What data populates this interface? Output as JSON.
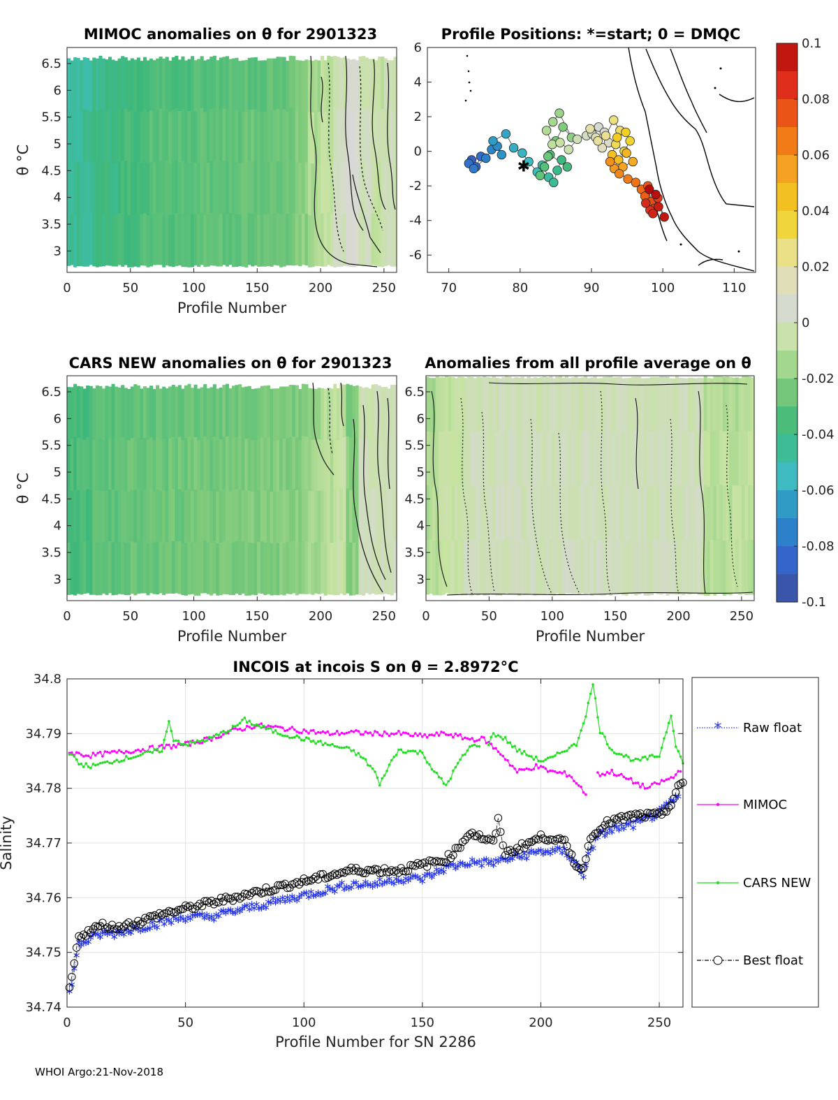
{
  "footer": "WHOI Argo:21-Nov-2018",
  "colors": {
    "raw": "#1f2ff0",
    "mimoc": "#ff00ff",
    "cars": "#22dd22",
    "best": "#000000",
    "cmap": [
      "#3d4f99",
      "#3366cc",
      "#2a8fc8",
      "#3fbfbf",
      "#3db87a",
      "#7cc97a",
      "#c6e3a0",
      "#d8d8d8",
      "#e9e296",
      "#f2d322",
      "#f5a623",
      "#f06a13",
      "#e0301c",
      "#b30b0b"
    ]
  },
  "colorbar": {
    "ticks": [
      0.1,
      0.08,
      0.06,
      0.04,
      0.02,
      0,
      -0.02,
      -0.04,
      -0.06,
      -0.08,
      -0.1
    ],
    "labels": [
      "0.1",
      "0.08",
      "0.06",
      "0.04",
      "0.02",
      "0",
      "-0.02",
      "-0.04",
      "-0.06",
      "-0.08",
      "-0.1"
    ]
  },
  "panels": {
    "mimoc": {
      "title": "MIMOC anomalies on θ  for 2901323",
      "xlabel": "Profile Number",
      "ylabel": "θ °C",
      "xticks": [
        0,
        50,
        100,
        150,
        200,
        250
      ],
      "yticks": [
        "6.5",
        "6",
        "5.5",
        "5",
        "4.5",
        "4",
        "3.5",
        "3"
      ]
    },
    "positions": {
      "title": "Profile Positions: *=start; 0 = DMQC",
      "xticks": [
        70,
        80,
        90,
        100,
        110
      ],
      "yticks": [
        "6",
        "4",
        "2",
        "0",
        "-2",
        "-4",
        "-6"
      ]
    },
    "cars": {
      "title": "CARS NEW anomalies on θ for 2901323",
      "xlabel": "Profile Number",
      "ylabel": "θ °C",
      "xticks": [
        0,
        50,
        100,
        150,
        200,
        250
      ],
      "yticks": [
        "6.5",
        "6",
        "5.5",
        "5",
        "4.5",
        "4",
        "3.5",
        "3"
      ]
    },
    "allavg": {
      "title": "Anomalies from all profile average on θ",
      "xlabel": "Profile Number",
      "xticks": [
        0,
        50,
        100,
        150,
        200,
        250
      ],
      "yticks": [
        "6.5",
        "6",
        "5.5",
        "5",
        "4.5",
        "4",
        "3.5",
        "3"
      ]
    }
  },
  "chart_data": [
    {
      "type": "heatmap",
      "title": "MIMOC anomalies on θ  for 2901323",
      "xlabel": "Profile Number",
      "ylabel": "θ °C",
      "xlim": [
        0,
        260
      ],
      "ylim": [
        2.6,
        6.8
      ],
      "clim": [
        -0.1,
        0.1
      ],
      "x_breaks": [
        0,
        20,
        40,
        60,
        80,
        100,
        120,
        140,
        160,
        180,
        190,
        200,
        210,
        220,
        230,
        240,
        250,
        260
      ],
      "anomaly": [
        -0.045,
        -0.04,
        -0.036,
        -0.033,
        -0.032,
        -0.03,
        -0.029,
        -0.028,
        -0.026,
        -0.02,
        -0.012,
        -0.008,
        0.0,
        0.01,
        0.0,
        -0.006,
        0.0
      ],
      "theta_top_range": [
        6.55,
        6.65
      ],
      "theta_bottom": 2.7
    },
    {
      "type": "scatter",
      "title": "Profile Positions: *=start; 0 = DMQC",
      "xlim": [
        67,
        113
      ],
      "ylim": [
        -7,
        6
      ],
      "start": [
        80.5,
        -0.9
      ],
      "clim": [
        0,
        260
      ],
      "x": [
        73.2,
        73.8,
        74.5,
        72.8,
        73.5,
        75.2,
        76.0,
        76.8,
        77.4,
        76.2,
        78.0,
        79.1,
        80.3,
        81.2,
        82.4,
        83.1,
        84.0,
        84.7,
        85.2,
        85.8,
        86.6,
        84.2,
        83.4,
        82.8,
        83.9,
        85.0,
        86.0,
        87.2,
        85.5,
        84.6,
        83.7,
        84.5,
        85.6,
        86.8,
        88.0,
        89.3,
        90.1,
        91.0,
        91.8,
        92.4,
        91.5,
        90.6,
        89.8,
        90.9,
        92.0,
        93.1,
        94.0,
        93.4,
        94.6,
        95.4,
        94.8,
        93.6,
        92.9,
        93.8,
        94.9,
        95.8,
        94.4,
        93.2,
        92.6,
        93.9,
        95.1,
        96.2,
        97.0,
        97.5,
        97.9,
        98.4,
        98.8,
        99.3,
        98.2,
        97.6,
        98.6,
        99.4,
        100.2,
        99.0,
        98.1
      ],
      "y": [
        -0.5,
        -0.9,
        -0.3,
        -0.7,
        -1.0,
        -0.4,
        0.1,
        0.3,
        -0.2,
        0.6,
        1.0,
        0.2,
        -0.1,
        -0.6,
        -1.2,
        -0.8,
        -1.5,
        -1.8,
        -1.1,
        -0.5,
        -0.9,
        -0.2,
        -0.9,
        -1.4,
        -0.3,
        0.6,
        1.4,
        0.8,
        2.2,
        1.7,
        1.2,
        0.4,
        0.5,
        0.1,
        0.7,
        0.9,
        1.0,
        1.4,
        1.1,
        0.5,
        0.2,
        0.8,
        1.3,
        0.6,
        0.9,
        1.8,
        1.2,
        0.4,
        0.0,
        0.6,
        1.1,
        0.8,
        -0.2,
        -0.5,
        -0.1,
        -0.6,
        -0.9,
        -1.0,
        -0.6,
        -1.3,
        -1.6,
        -1.8,
        -2.2,
        -2.6,
        -2.0,
        -2.9,
        -3.3,
        -2.7,
        -3.4,
        -3.0,
        -3.6,
        -3.2,
        -3.8,
        -2.5,
        -2.2
      ]
    },
    {
      "type": "heatmap",
      "title": "CARS NEW anomalies on θ for 2901323",
      "xlabel": "Profile Number",
      "ylabel": "θ °C",
      "xlim": [
        0,
        260
      ],
      "ylim": [
        2.6,
        6.8
      ],
      "clim": [
        -0.1,
        0.1
      ],
      "x_breaks": [
        0,
        20,
        40,
        60,
        80,
        100,
        120,
        140,
        160,
        180,
        190,
        200,
        210,
        220,
        230,
        240,
        250,
        260
      ],
      "anomaly": [
        -0.035,
        -0.03,
        -0.028,
        -0.027,
        -0.026,
        -0.025,
        -0.024,
        -0.023,
        -0.022,
        -0.02,
        -0.015,
        -0.01,
        -0.006,
        -0.02,
        0.0,
        0.0,
        0.0
      ],
      "theta_top_range": [
        6.55,
        6.65
      ],
      "theta_bottom": 2.7
    },
    {
      "type": "heatmap",
      "title": "Anomalies from all profile average on θ",
      "xlabel": "Profile Number",
      "xlim": [
        0,
        260
      ],
      "ylim": [
        2.6,
        6.8
      ],
      "clim": [
        -0.1,
        0.1
      ],
      "x_breaks": [
        0,
        10,
        30,
        60,
        100,
        140,
        180,
        200,
        220,
        240,
        260
      ],
      "anomaly": [
        -0.012,
        -0.006,
        0.0,
        0.0,
        0.0,
        0.0,
        0.0,
        0.0,
        -0.01,
        -0.01
      ],
      "theta_top_range": [
        6.75,
        6.8
      ],
      "theta_bottom": 2.7
    },
    {
      "type": "line",
      "title": "INCOIS at incois S on θ = 2.8972°C",
      "xlabel": "Profile Number for SN 2286",
      "ylabel": "Salinity",
      "xlim": [
        0,
        260
      ],
      "ylim": [
        34.74,
        34.8
      ],
      "xticks": [
        0,
        50,
        100,
        150,
        200,
        250
      ],
      "yticks": [
        34.74,
        34.75,
        34.76,
        34.77,
        34.78,
        34.79,
        34.8
      ],
      "ytick_labels": [
        "34.74",
        "34.75",
        "34.76",
        "34.77",
        "34.78",
        "34.79",
        "34.8"
      ],
      "grid": true,
      "legend_position": "right",
      "series": [
        {
          "name": "Raw float",
          "marker": "star",
          "anchors_x": [
            1,
            5,
            10,
            15,
            20,
            30,
            40,
            50,
            60,
            70,
            80,
            90,
            100,
            110,
            120,
            130,
            140,
            150,
            160,
            170,
            180,
            190,
            200,
            210,
            215,
            218,
            220,
            225,
            230,
            240,
            250,
            258
          ],
          "anchors_y": [
            34.742,
            34.751,
            34.752,
            34.753,
            34.753,
            34.754,
            34.755,
            34.756,
            34.756,
            34.757,
            34.758,
            34.759,
            34.76,
            34.761,
            34.762,
            34.762,
            34.763,
            34.763,
            34.765,
            34.766,
            34.766,
            34.767,
            34.768,
            34.768,
            34.766,
            34.763,
            34.768,
            34.771,
            34.772,
            34.773,
            34.775,
            34.778
          ]
        },
        {
          "name": "MIMOC",
          "marker": "dot",
          "anchors_x": [
            1,
            10,
            20,
            30,
            40,
            50,
            60,
            70,
            80,
            90,
            100,
            110,
            120,
            130,
            140,
            150,
            160,
            170,
            176,
            180,
            184,
            186,
            190,
            198,
            205,
            212,
            219
          ],
          "anchors_y": [
            34.7865,
            34.786,
            34.7865,
            34.787,
            34.7875,
            34.788,
            34.789,
            34.7905,
            34.7915,
            34.791,
            34.7905,
            34.79,
            34.7902,
            34.79,
            34.79,
            34.7895,
            34.79,
            34.789,
            34.789,
            34.7875,
            34.786,
            34.785,
            34.783,
            34.784,
            34.783,
            34.7825,
            34.779
          ],
          "anchors2_x": [
            224,
            230,
            235,
            240,
            245,
            250,
            256,
            259
          ],
          "anchors2_y": [
            34.7825,
            34.783,
            34.782,
            34.781,
            34.78,
            34.781,
            34.782,
            34.7835
          ]
        },
        {
          "name": "CARS NEW",
          "marker": "dot",
          "anchors_x": [
            1,
            5,
            10,
            15,
            20,
            30,
            40,
            43,
            45,
            50,
            60,
            70,
            75,
            80,
            90,
            100,
            110,
            115,
            120,
            125,
            130,
            132,
            135,
            140,
            150,
            155,
            158,
            160,
            165,
            170,
            174,
            175,
            180,
            185,
            190,
            195,
            200,
            205,
            210,
            215,
            219,
            222,
            225,
            230,
            235,
            240,
            245,
            250,
            255,
            257,
            260
          ],
          "anchors_y": [
            34.7865,
            34.7845,
            34.784,
            34.7845,
            34.785,
            34.786,
            34.787,
            34.792,
            34.789,
            34.788,
            34.789,
            34.791,
            34.7925,
            34.7915,
            34.79,
            34.789,
            34.788,
            34.7875,
            34.787,
            34.7855,
            34.783,
            34.7805,
            34.7835,
            34.787,
            34.7865,
            34.783,
            34.7815,
            34.7805,
            34.7845,
            34.7875,
            34.788,
            34.7855,
            34.79,
            34.789,
            34.787,
            34.786,
            34.785,
            34.7855,
            34.787,
            34.788,
            34.7935,
            34.799,
            34.7905,
            34.787,
            34.786,
            34.785,
            34.7855,
            34.786,
            34.7935,
            34.788,
            34.7845
          ]
        },
        {
          "name": "Best float",
          "marker": "circle",
          "anchors_x": [
            1,
            5,
            10,
            15,
            20,
            30,
            40,
            50,
            60,
            70,
            80,
            90,
            100,
            110,
            120,
            130,
            140,
            150,
            160,
            165,
            170,
            175,
            180,
            182,
            185,
            190,
            195,
            200,
            205,
            210,
            215,
            218,
            220,
            225,
            230,
            240,
            250,
            255,
            258,
            260
          ],
          "anchors_y": [
            34.743,
            34.753,
            34.754,
            34.755,
            34.7545,
            34.7555,
            34.757,
            34.758,
            34.759,
            34.76,
            34.761,
            34.762,
            34.763,
            34.764,
            34.765,
            34.765,
            34.765,
            34.766,
            34.767,
            34.769,
            34.772,
            34.771,
            34.77,
            34.774,
            34.768,
            34.769,
            34.77,
            34.771,
            34.771,
            34.77,
            34.766,
            34.765,
            34.77,
            34.773,
            34.774,
            34.775,
            34.775,
            34.777,
            34.78,
            34.781
          ]
        }
      ]
    }
  ]
}
